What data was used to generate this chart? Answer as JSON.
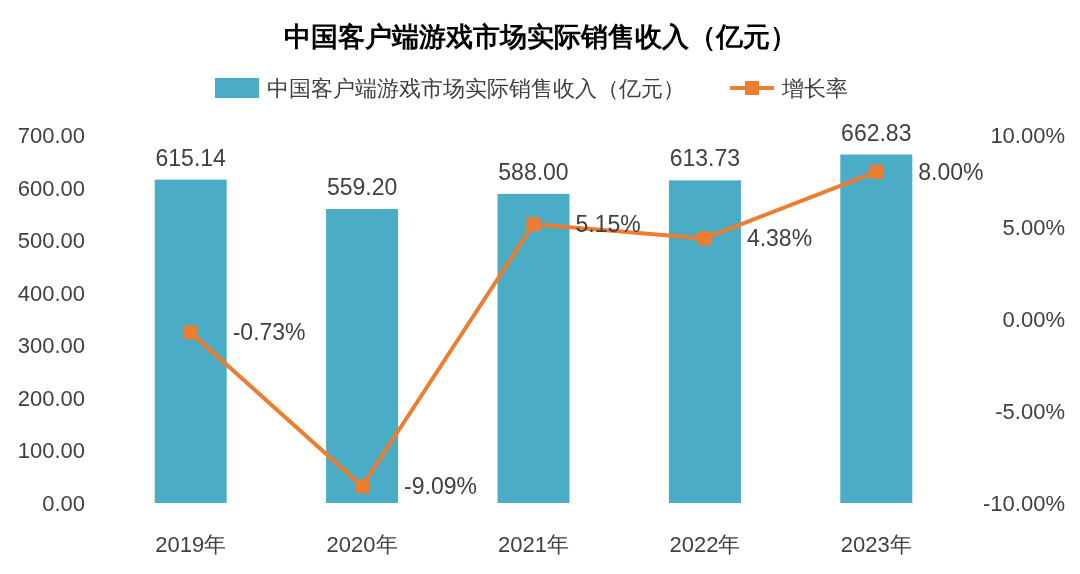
{
  "chart_data": {
    "type": "bar",
    "title": "中国客户端游戏市场实际销售收入（亿元）",
    "categories": [
      "2019年",
      "2020年",
      "2021年",
      "2022年",
      "2023年"
    ],
    "series": [
      {
        "name": "中国客户端游戏市场实际销售收入（亿元）",
        "color": "#4bacc6",
        "values": [
          615.14,
          559.2,
          588.0,
          613.73,
          662.83
        ],
        "value_labels": [
          "615.14",
          "559.20",
          "588.00",
          "613.73",
          "662.83"
        ]
      },
      {
        "name": "增长率",
        "type": "line",
        "axis": "y2",
        "color": "#ed7d31",
        "marker": "square",
        "values": [
          -0.73,
          -9.09,
          5.15,
          4.38,
          8.0
        ],
        "value_labels": [
          "-0.73%",
          "-9.09%",
          "5.15%",
          "4.38%",
          "8.00%"
        ]
      }
    ],
    "ylim": [
      0,
      700
    ],
    "yticks": [
      {
        "value": 0,
        "label": "0.00"
      },
      {
        "value": 100,
        "label": "100.00"
      },
      {
        "value": 200,
        "label": "200.00"
      },
      {
        "value": 300,
        "label": "300.00"
      },
      {
        "value": 400,
        "label": "400.00"
      },
      {
        "value": 500,
        "label": "500.00"
      },
      {
        "value": 600,
        "label": "600.00"
      },
      {
        "value": 700,
        "label": "700.00"
      }
    ],
    "y2lim": [
      -10,
      10
    ],
    "y2ticks": [
      {
        "value": -10,
        "label": "-10.00%"
      },
      {
        "value": -5,
        "label": "-5.00%"
      },
      {
        "value": 0,
        "label": "0.00%"
      },
      {
        "value": 5,
        "label": "5.00%"
      },
      {
        "value": 10,
        "label": "10.00%"
      }
    ],
    "legend": "top",
    "grid": false
  }
}
